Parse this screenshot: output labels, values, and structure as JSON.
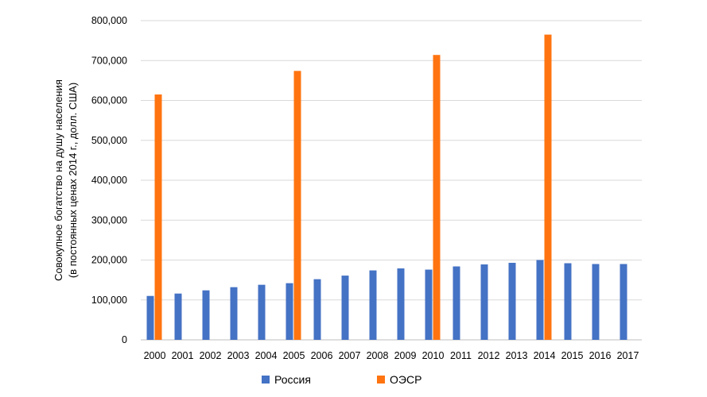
{
  "chart_data": {
    "type": "bar",
    "title": "",
    "xlabel": "",
    "ylabel_lines": [
      "Совокупное  богатство на душу населения",
      "(в постоянных ценах 2014 г.,  долл. США)"
    ],
    "ylim": [
      0,
      800000
    ],
    "yticks": [
      "0",
      "100,000",
      "200,000",
      "300,000",
      "400,000",
      "500,000",
      "600,000",
      "700,000",
      "800,000"
    ],
    "ytick_values": [
      0,
      100000,
      200000,
      300000,
      400000,
      500000,
      600000,
      700000,
      800000
    ],
    "grid": true,
    "legend_position": "bottom",
    "categories": [
      "2000",
      "2001",
      "2002",
      "2003",
      "2004",
      "2005",
      "2006",
      "2007",
      "2008",
      "2009",
      "2010",
      "2011",
      "2012",
      "2013",
      "2014",
      "2015",
      "2016",
      "2017"
    ],
    "series": [
      {
        "name": "Россия",
        "color": "#4472C4",
        "values": [
          110000,
          116000,
          124000,
          132000,
          138000,
          142000,
          152000,
          161000,
          174000,
          179000,
          176000,
          184000,
          189000,
          193000,
          200000,
          192000,
          190000,
          190000
        ]
      },
      {
        "name": "ОЭСР",
        "color": "#FF7410",
        "values": [
          615000,
          null,
          null,
          null,
          null,
          674000,
          null,
          null,
          null,
          null,
          714000,
          null,
          null,
          null,
          765000,
          null,
          null,
          null
        ]
      }
    ]
  }
}
